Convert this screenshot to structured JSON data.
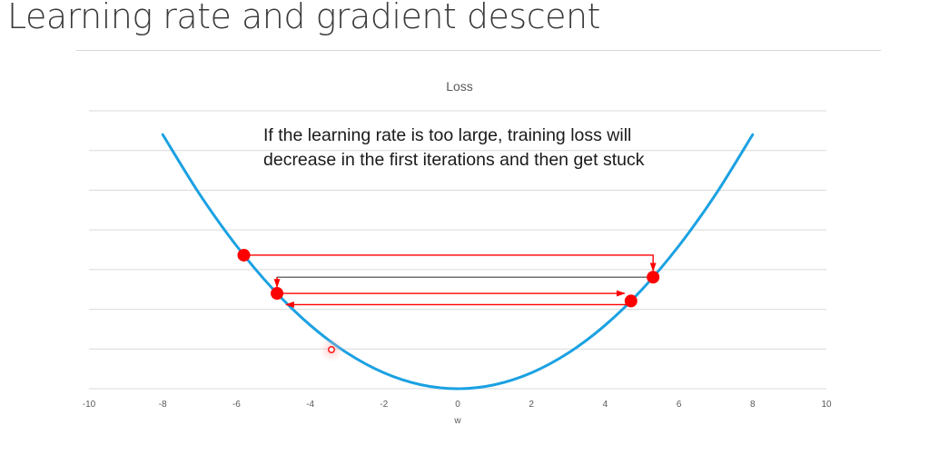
{
  "slide": {
    "title": "Learning rate and gradient descent"
  },
  "chart_data": {
    "type": "line",
    "title": "Loss",
    "xlabel": "w",
    "ylabel": "",
    "xlim": [
      -10,
      10
    ],
    "ylim": [
      0,
      70
    ],
    "x_ticks": [
      -10,
      -8,
      -6,
      -4,
      -2,
      0,
      2,
      4,
      6,
      8,
      10
    ],
    "grid": true,
    "legend": "none",
    "series": [
      {
        "color": "#1ba1e2",
        "x": [
          -8,
          -7,
          -6,
          -5,
          -4,
          -3,
          -2,
          -1,
          0,
          1,
          2,
          3,
          4,
          5,
          6,
          7,
          8
        ],
        "y": [
          64,
          49,
          36,
          25,
          16,
          9,
          4,
          1,
          0,
          1,
          4,
          9,
          16,
          25,
          36,
          49,
          64
        ]
      }
    ],
    "steps": {
      "color": "#ff0000",
      "points": [
        {
          "x": -5.8,
          "y": 33.64
        },
        {
          "x": 5.3,
          "y": 28.09
        },
        {
          "x": -4.9,
          "y": 24.01
        },
        {
          "x": 4.7,
          "y": 22.09
        }
      ]
    },
    "annotation": "If the learning rate is too large, training loss will decrease in the first iterations and then get stuck"
  }
}
